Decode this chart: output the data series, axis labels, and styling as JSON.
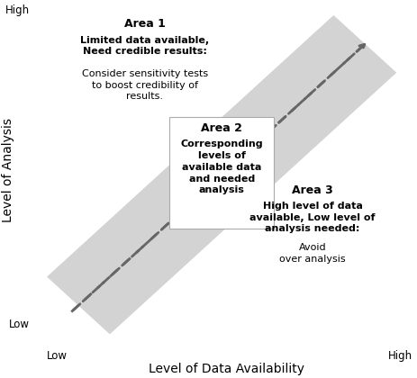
{
  "fig_width": 4.63,
  "fig_height": 4.2,
  "dpi": 100,
  "bg_color": "#ffffff",
  "xlabel": "Level of Data Availability",
  "ylabel": "Level of Analysis",
  "x_low_label": "Low",
  "x_high_label": "High",
  "y_low_label": "Low",
  "y_high_label": "High",
  "axis_label_fontsize": 10,
  "tick_label_fontsize": 8.5,
  "band_color": "#d3d3d3",
  "area1_title": "Area 1",
  "area1_bold": "Limited data available,\nNeed credible results:",
  "area1_normal": "Consider sensitivity tests\nto boost credibility of\nresults.",
  "area2_title": "Area 2",
  "area2_text": "Corresponding\nlevels of\navailable data\nand needed\nanalysis",
  "area3_title": "Area 3",
  "area3_bold_normal": "High level of data\navailable, Low level of\nanalysis needed:",
  "area3_normal": "Avoid\nover analysis",
  "title_fontsize": 9,
  "text_fontsize": 8,
  "bold_fontsize": 8
}
